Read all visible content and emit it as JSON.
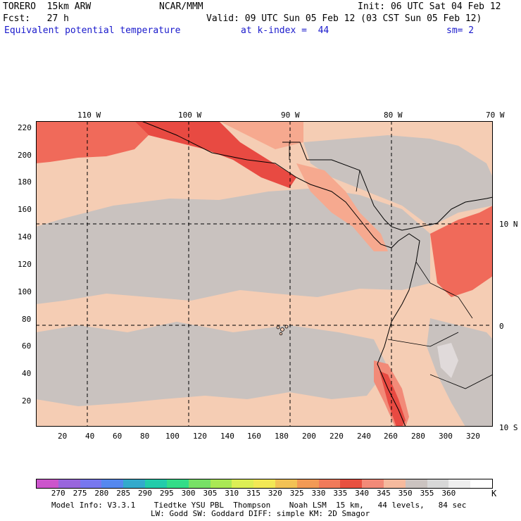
{
  "header": {
    "model": "TORERO  15km ARW",
    "center": "NCAR/MMM",
    "init": "Init: 06 UTC Sat 04 Feb 12",
    "fcst": "Fcst:   27 h",
    "valid": "Valid: 09 UTC Sun 05 Feb 12 (03 CST Sun 05 Feb 12)",
    "field": "Equivalent potential temperature",
    "level": "at k-index =  44",
    "smooth": "sm= 2"
  },
  "map": {
    "lon_labels": [
      "110 W",
      "100 W",
      "90 W",
      "80 W",
      "70 W"
    ],
    "lat_labels": [
      "10 N",
      "0",
      "10 S"
    ],
    "y_ticks": [
      "220",
      "200",
      "180",
      "160",
      "140",
      "120",
      "100",
      "80",
      "60",
      "40",
      "20"
    ],
    "x_ticks": [
      "20",
      "40",
      "60",
      "80",
      "100",
      "120",
      "140",
      "160",
      "180",
      "200",
      "220",
      "240",
      "260",
      "280",
      "300",
      "320"
    ],
    "colors": {
      "bg_low": "#f5cdb4",
      "bg_mid": "#c9c2bf",
      "warm": "#f6a98f",
      "hot": "#f06a5a",
      "hottest": "#e84a42"
    }
  },
  "colorbar": {
    "values": [
      "270",
      "275",
      "280",
      "285",
      "290",
      "295",
      "300",
      "305",
      "310",
      "315",
      "320",
      "325",
      "330",
      "335",
      "340",
      "345",
      "350",
      "355",
      "360"
    ],
    "unit": "K",
    "colors": [
      "#cc55cc",
      "#9966dd",
      "#7777ee",
      "#5588ee",
      "#33aacc",
      "#22ccaa",
      "#33dd88",
      "#77e066",
      "#aae855",
      "#ddee55",
      "#f2e855",
      "#f2c255",
      "#f29a55",
      "#f07a5a",
      "#e85040",
      "#f28a78",
      "#f6ba9e",
      "#cbc3c0",
      "#d8d8d8",
      "#eeeeee",
      "#ffffff"
    ]
  },
  "footer": {
    "line1": "Model Info: V3.3.1    Tiedtke YSU PBL  Thompson    Noah LSM  15 km,   44 levels,   84 sec",
    "line2": "LW: Godd SW: Goddard DIFF: simple KM: 2D Smagor"
  }
}
